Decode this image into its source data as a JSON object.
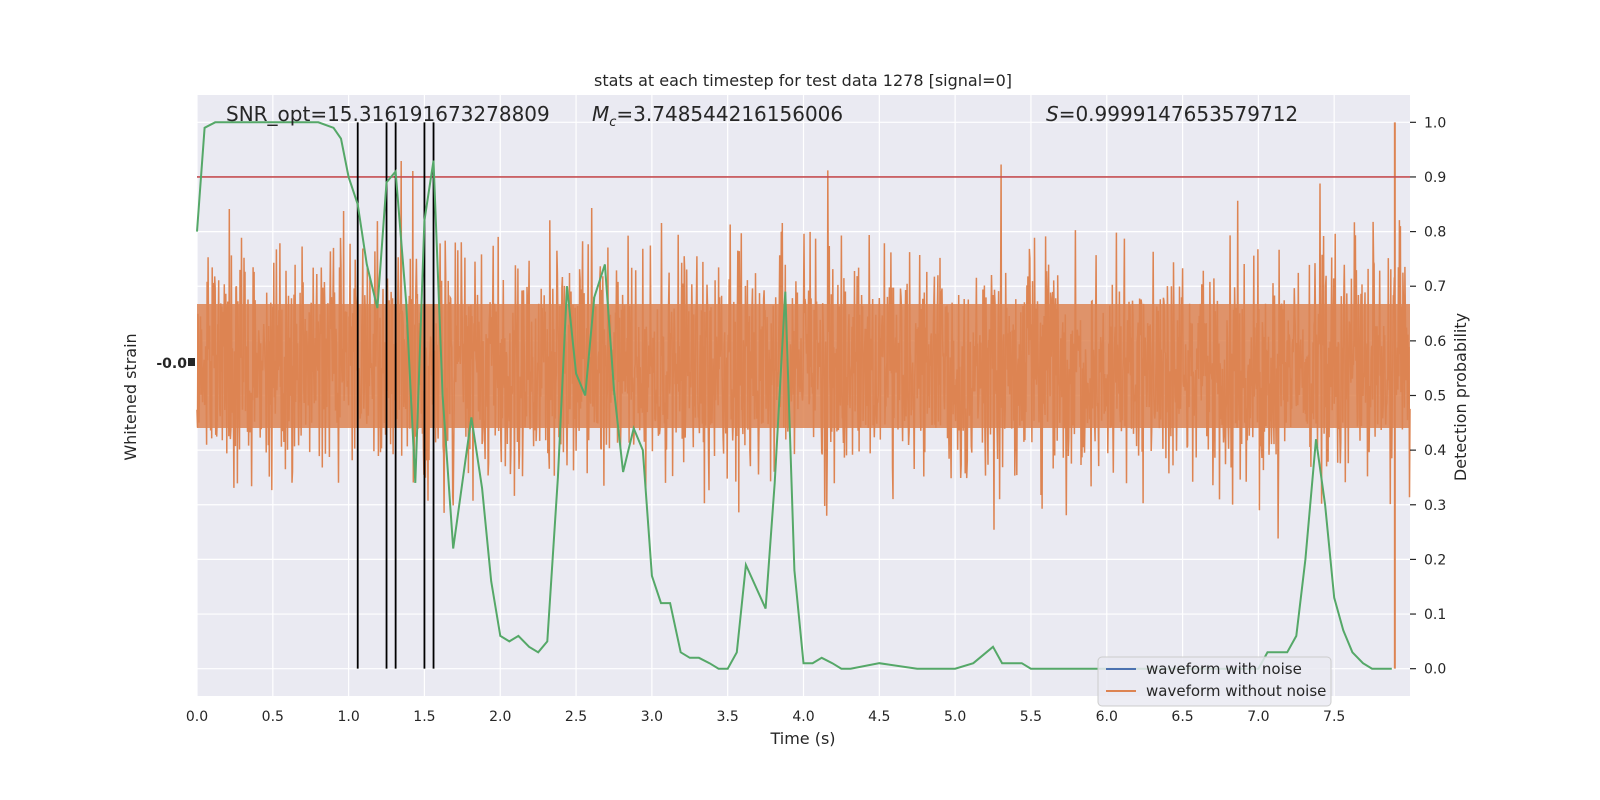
{
  "chart_data": {
    "type": "line",
    "title": "stats at each timestep for test data 1278 [signal=0]",
    "xlabel": "Time (s)",
    "ylabel_left": "Whitened strain",
    "ylabel_right": "Detection probability",
    "xlim": [
      0.0,
      8.0
    ],
    "ylim_right": [
      -0.05,
      1.05
    ],
    "x_ticks": [
      "0.0",
      "0.5",
      "1.0",
      "1.5",
      "2.0",
      "2.5",
      "3.0",
      "3.5",
      "4.0",
      "4.5",
      "5.0",
      "5.5",
      "6.0",
      "6.5",
      "7.0",
      "7.5"
    ],
    "y_ticks_right": [
      "0.0",
      "0.1",
      "0.2",
      "0.3",
      "0.4",
      "0.5",
      "0.6",
      "0.7",
      "0.8",
      "0.9",
      "1.0"
    ],
    "left_tick_label": "-0.0",
    "grid": true,
    "threshold": 0.9,
    "annotations": {
      "snr": "SNR_opt=15.316191673278809",
      "mc_symbol": "M",
      "mc_sub": "c",
      "mc_value": "=3.748544216156006",
      "s_symbol": "S",
      "s_value": "=0.9999147653579712"
    },
    "detection_times": [
      1.06,
      1.25,
      1.31,
      1.5,
      1.56
    ],
    "legend": {
      "placement": "lower-right",
      "entries": [
        {
          "label": "waveform with noise",
          "color": "#4c72b0"
        },
        {
          "label": "waveform without noise",
          "color": "#dd8452"
        }
      ]
    },
    "series": [
      {
        "role": "detection-probability",
        "color": "#55a868",
        "x": [
          0.0,
          0.05,
          0.12,
          0.2,
          0.3,
          0.4,
          0.5,
          0.6,
          0.7,
          0.8,
          0.9,
          0.95,
          1.0,
          1.06,
          1.12,
          1.19,
          1.25,
          1.31,
          1.38,
          1.44,
          1.5,
          1.56,
          1.62,
          1.69,
          1.75,
          1.81,
          1.88,
          1.94,
          2.0,
          2.06,
          2.12,
          2.19,
          2.25,
          2.31,
          2.38,
          2.44,
          2.5,
          2.56,
          2.62,
          2.69,
          2.75,
          2.81,
          2.88,
          2.94,
          3.0,
          3.06,
          3.12,
          3.19,
          3.25,
          3.31,
          3.38,
          3.44,
          3.5,
          3.56,
          3.62,
          3.75,
          3.81,
          3.88,
          3.94,
          4.0,
          4.06,
          4.12,
          4.19,
          4.25,
          4.31,
          4.5,
          4.75,
          5.0,
          5.12,
          5.25,
          5.31,
          5.38,
          5.44,
          5.5,
          5.56,
          6.0,
          6.5,
          7.0,
          7.06,
          7.19,
          7.25,
          7.31,
          7.38,
          7.44,
          7.5,
          7.56,
          7.62,
          7.69,
          7.75,
          7.88
        ],
        "values": [
          0.8,
          0.99,
          1.0,
          1.0,
          1.0,
          1.0,
          1.0,
          1.0,
          1.0,
          1.0,
          0.99,
          0.97,
          0.9,
          0.85,
          0.74,
          0.66,
          0.89,
          0.91,
          0.67,
          0.34,
          0.82,
          0.93,
          0.5,
          0.22,
          0.34,
          0.46,
          0.33,
          0.16,
          0.06,
          0.05,
          0.06,
          0.04,
          0.03,
          0.05,
          0.35,
          0.7,
          0.54,
          0.5,
          0.68,
          0.74,
          0.51,
          0.36,
          0.44,
          0.4,
          0.17,
          0.12,
          0.12,
          0.03,
          0.02,
          0.02,
          0.01,
          0.0,
          0.0,
          0.03,
          0.19,
          0.11,
          0.34,
          0.69,
          0.18,
          0.01,
          0.01,
          0.02,
          0.01,
          0.0,
          0.0,
          0.01,
          0.0,
          0.0,
          0.01,
          0.04,
          0.01,
          0.01,
          0.01,
          0.0,
          0.0,
          0.0,
          0.0,
          0.0,
          0.03,
          0.03,
          0.06,
          0.2,
          0.42,
          0.3,
          0.13,
          0.07,
          0.03,
          0.01,
          0.0,
          0.0
        ]
      }
    ]
  }
}
